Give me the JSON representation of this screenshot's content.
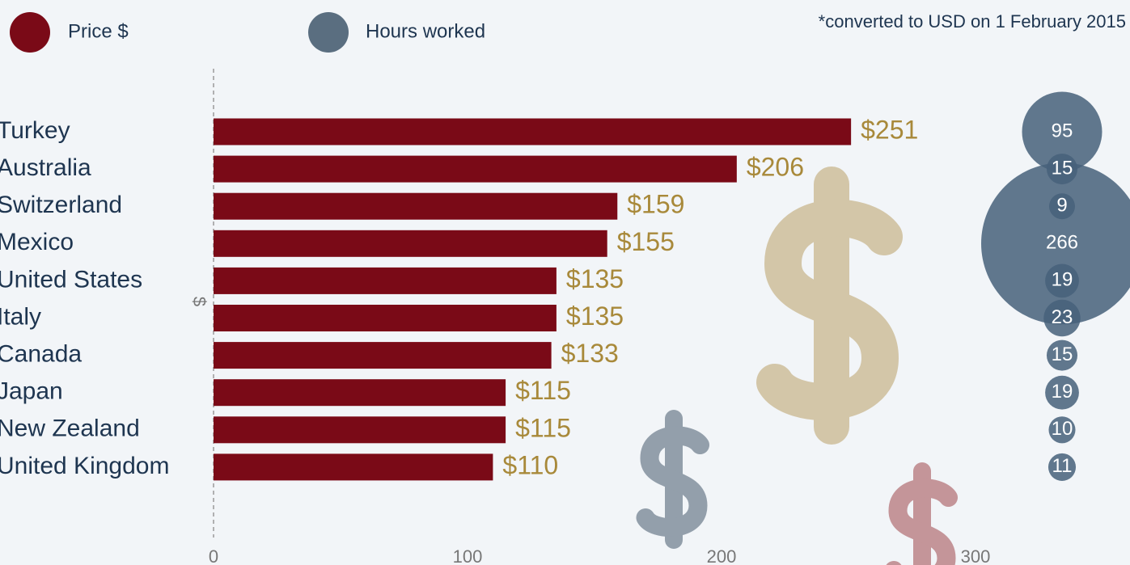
{
  "chart_data": {
    "type": "bar",
    "note": "*converted to USD on 1 February 2015",
    "y_label": "$",
    "categories": [
      "Turkey",
      "Australia",
      "Switzerland",
      "Mexico",
      "United States",
      "Italy",
      "Canada",
      "Japan",
      "New Zealand",
      "United Kingdom"
    ],
    "series": [
      {
        "name": "Price $",
        "color": "#7a0a17",
        "values": [
          251,
          206,
          159,
          155,
          135,
          135,
          133,
          115,
          115,
          110
        ],
        "value_labels": [
          "$251",
          "$206",
          "$159",
          "$155",
          "$135",
          "$135",
          "$133",
          "$115",
          "$115",
          "$110"
        ]
      },
      {
        "name": "Hours worked",
        "color": "#46607a",
        "values": [
          95,
          15,
          9,
          266,
          19,
          23,
          15,
          19,
          10,
          11
        ]
      }
    ],
    "xlim": [
      0,
      300
    ],
    "xticks": [
      0,
      100,
      200,
      300
    ]
  }
}
